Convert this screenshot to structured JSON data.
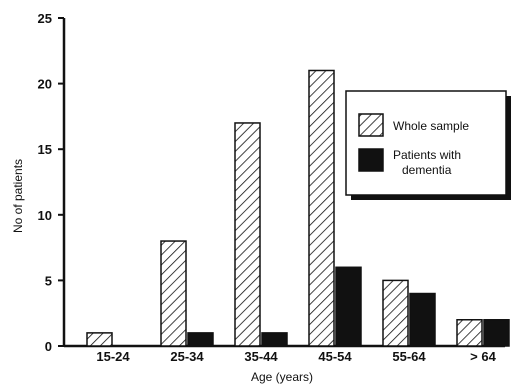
{
  "chart_data": {
    "type": "bar",
    "xlabel": "Age (years)",
    "ylabel": "No of patients",
    "ylim": [
      0,
      25
    ],
    "yticks": [
      0,
      5,
      10,
      15,
      20,
      25
    ],
    "categories": [
      "15-24",
      "25-34",
      "35-44",
      "45-54",
      "55-64",
      "> 64"
    ],
    "series": [
      {
        "name": "Whole sample",
        "values": [
          1,
          8,
          17,
          21,
          5,
          2
        ],
        "fill": "hatched"
      },
      {
        "name": "Patients with dementia",
        "name_lines": [
          "Patients with",
          "dementia"
        ],
        "values": [
          0,
          1,
          1,
          6,
          4,
          2
        ],
        "fill": "solid"
      }
    ],
    "legend_position": "right",
    "colors": {
      "ink": "#111111",
      "background": "#ffffff"
    }
  }
}
